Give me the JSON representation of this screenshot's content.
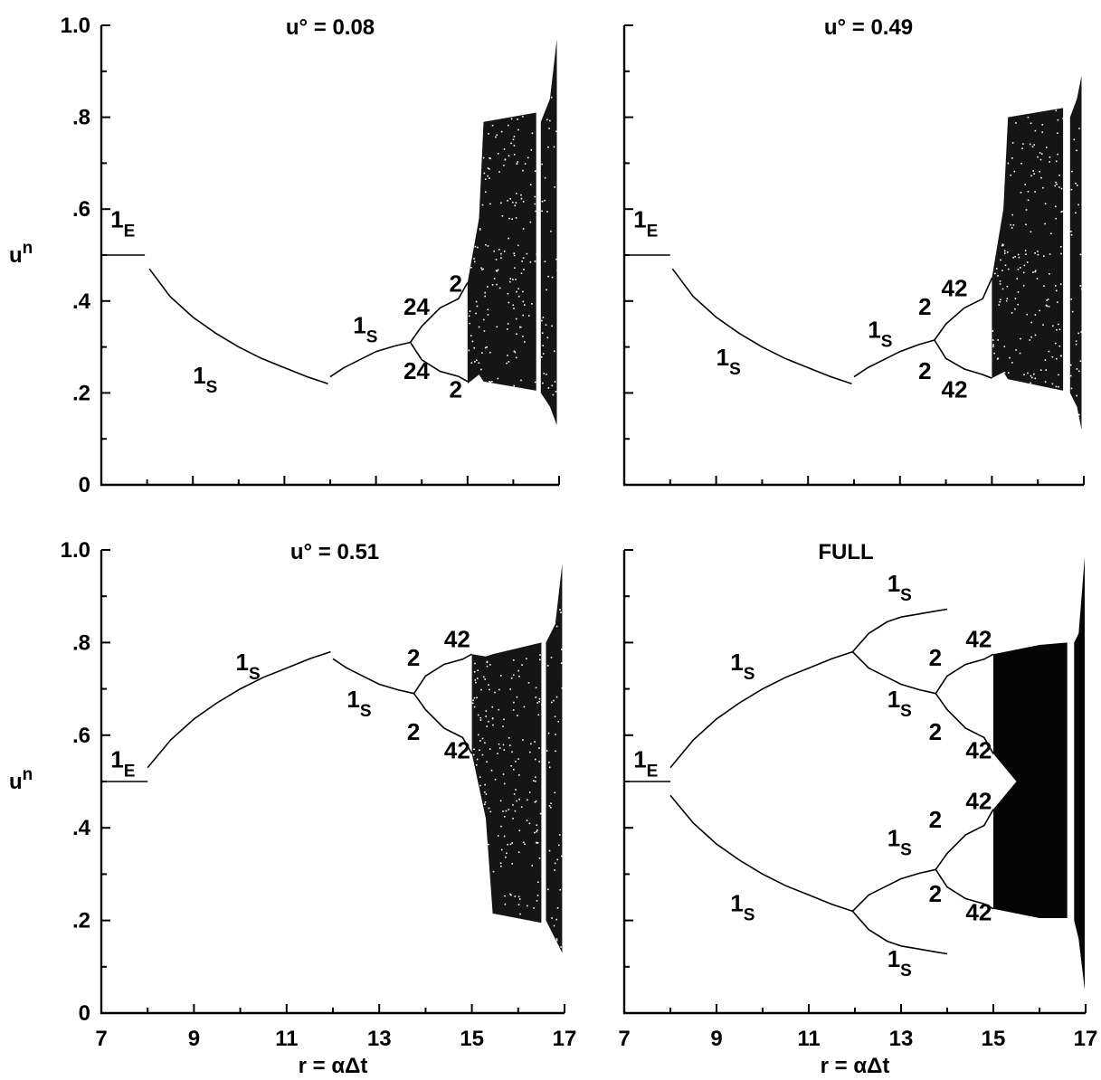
{
  "chart_data": [
    {
      "type": "scatter",
      "title": "u° = 0.08",
      "xlabel": "",
      "ylabel": "un",
      "xlim": [
        7,
        17
      ],
      "ylim": [
        0,
        1.0
      ],
      "xticks": [],
      "yticks": [
        "0",
        ".2",
        ".4",
        ".6",
        ".8",
        "1.0"
      ],
      "grid": false,
      "branches": [
        {
          "x": [
            7,
            7.5,
            7.95
          ],
          "y": [
            0.5,
            0.5,
            0.5
          ]
        },
        {
          "x": [
            8.05,
            8.5,
            9,
            9.5,
            10,
            10.5,
            11,
            11.5,
            11.95
          ],
          "y": [
            0.47,
            0.41,
            0.365,
            0.33,
            0.3,
            0.275,
            0.255,
            0.235,
            0.22
          ]
        },
        {
          "x": [
            12.0,
            12.3,
            12.7,
            13.0,
            13.4,
            13.75
          ],
          "y": [
            0.235,
            0.255,
            0.275,
            0.29,
            0.302,
            0.31
          ]
        },
        {
          "x": [
            13.75,
            14.0,
            14.4,
            14.8,
            15.0
          ],
          "y": [
            0.31,
            0.345,
            0.385,
            0.405,
            0.44
          ]
        },
        {
          "x": [
            13.75,
            14.0,
            14.4,
            14.8,
            15.0
          ],
          "y": [
            0.31,
            0.272,
            0.247,
            0.236,
            0.225
          ]
        }
      ],
      "chaos_bands": [
        {
          "x": [
            15.0,
            15.25,
            15.35,
            16.5
          ],
          "top": [
            0.44,
            0.58,
            0.79,
            0.81
          ],
          "bottom": [
            0.22,
            0.24,
            0.225,
            0.205
          ]
        },
        {
          "x": [
            16.6,
            16.8,
            16.95
          ],
          "top": [
            0.79,
            0.84,
            0.97
          ],
          "bottom": [
            0.2,
            0.17,
            0.13
          ]
        }
      ],
      "annotations": [
        {
          "text": "1",
          "sub": "E",
          "x": 7.2,
          "y": 0.56
        },
        {
          "text": "1",
          "sub": "S",
          "x": 9.0,
          "y": 0.22
        },
        {
          "text": "1",
          "sub": "S",
          "x": 12.5,
          "y": 0.33
        },
        {
          "text": "24",
          "sub": "",
          "x": 13.6,
          "y": 0.37
        },
        {
          "text": "2",
          "sub": "",
          "x": 14.6,
          "y": 0.42
        },
        {
          "text": "24",
          "sub": "",
          "x": 13.6,
          "y": 0.23
        },
        {
          "text": "2",
          "sub": "",
          "x": 14.6,
          "y": 0.19
        }
      ]
    },
    {
      "type": "scatter",
      "title": "u° = 0.49",
      "xlabel": "",
      "ylabel": "",
      "xlim": [
        7,
        17
      ],
      "ylim": [
        0,
        1.0
      ],
      "xticks": [],
      "yticks": [],
      "grid": false,
      "branches": [
        {
          "x": [
            7,
            7.5,
            8.0
          ],
          "y": [
            0.5,
            0.5,
            0.5
          ]
        },
        {
          "x": [
            8.05,
            8.5,
            9,
            9.5,
            10,
            10.5,
            11,
            11.5,
            11.95
          ],
          "y": [
            0.47,
            0.41,
            0.365,
            0.33,
            0.3,
            0.275,
            0.255,
            0.235,
            0.22
          ]
        },
        {
          "x": [
            12.0,
            12.3,
            12.7,
            13.0,
            13.4,
            13.75
          ],
          "y": [
            0.235,
            0.255,
            0.275,
            0.29,
            0.305,
            0.315
          ]
        },
        {
          "x": [
            13.75,
            14.0,
            14.4,
            14.8,
            15.0
          ],
          "y": [
            0.315,
            0.35,
            0.385,
            0.405,
            0.45
          ]
        },
        {
          "x": [
            13.75,
            14.0,
            14.4,
            14.8,
            15.0
          ],
          "y": [
            0.315,
            0.275,
            0.252,
            0.24,
            0.232
          ]
        }
      ],
      "chaos_bands": [
        {
          "x": [
            15.0,
            15.25,
            15.35,
            16.55
          ],
          "top": [
            0.45,
            0.6,
            0.8,
            0.82
          ],
          "bottom": [
            0.232,
            0.245,
            0.23,
            0.205
          ]
        },
        {
          "x": [
            16.7,
            16.85,
            16.95
          ],
          "top": [
            0.8,
            0.84,
            0.89
          ],
          "bottom": [
            0.2,
            0.17,
            0.12
          ]
        }
      ],
      "annotations": [
        {
          "text": "1",
          "sub": "E",
          "x": 7.2,
          "y": 0.56
        },
        {
          "text": "1",
          "sub": "S",
          "x": 9.0,
          "y": 0.26
        },
        {
          "text": "1",
          "sub": "S",
          "x": 12.3,
          "y": 0.32
        },
        {
          "text": "2",
          "sub": "",
          "x": 13.4,
          "y": 0.37
        },
        {
          "text": "42",
          "sub": "",
          "x": 13.9,
          "y": 0.41
        },
        {
          "text": "2",
          "sub": "",
          "x": 13.4,
          "y": 0.23
        },
        {
          "text": "42",
          "sub": "",
          "x": 13.9,
          "y": 0.19
        }
      ]
    },
    {
      "type": "scatter",
      "title": "u° = 0.51",
      "xlabel": "r = αΔt",
      "ylabel": "un",
      "xlim": [
        7,
        17
      ],
      "ylim": [
        0,
        1.0
      ],
      "xticks": [
        "7",
        "9",
        "11",
        "13",
        "15",
        "17"
      ],
      "yticks": [
        "0",
        ".2",
        ".4",
        ".6",
        ".8",
        "1.0"
      ],
      "grid": false,
      "branches": [
        {
          "x": [
            7,
            7.5,
            8.0
          ],
          "y": [
            0.5,
            0.5,
            0.5
          ]
        },
        {
          "x": [
            8.0,
            8.5,
            9,
            9.5,
            10,
            10.5,
            11,
            11.5,
            11.95
          ],
          "y": [
            0.53,
            0.59,
            0.635,
            0.67,
            0.7,
            0.725,
            0.745,
            0.765,
            0.78
          ]
        },
        {
          "x": [
            12.0,
            12.3,
            12.7,
            13.0,
            13.4,
            13.75
          ],
          "y": [
            0.765,
            0.745,
            0.725,
            0.71,
            0.698,
            0.69
          ]
        },
        {
          "x": [
            13.75,
            14.0,
            14.4,
            14.8,
            15.0
          ],
          "y": [
            0.69,
            0.728,
            0.753,
            0.764,
            0.775
          ]
        },
        {
          "x": [
            13.75,
            14.0,
            14.4,
            14.8,
            15.0
          ],
          "y": [
            0.69,
            0.655,
            0.615,
            0.595,
            0.56
          ]
        }
      ],
      "chaos_bands": [
        {
          "x": [
            15.0,
            15.3,
            15.45,
            16.5
          ],
          "top": [
            0.775,
            0.77,
            0.775,
            0.8
          ],
          "bottom": [
            0.56,
            0.42,
            0.215,
            0.195
          ]
        },
        {
          "x": [
            16.6,
            16.8,
            16.95
          ],
          "top": [
            0.8,
            0.84,
            0.97
          ],
          "bottom": [
            0.2,
            0.16,
            0.13
          ]
        }
      ],
      "annotations": [
        {
          "text": "1",
          "sub": "E",
          "x": 7.2,
          "y": 0.53
        },
        {
          "text": "1",
          "sub": "S",
          "x": 9.9,
          "y": 0.74
        },
        {
          "text": "1",
          "sub": "S",
          "x": 12.3,
          "y": 0.66
        },
        {
          "text": "2",
          "sub": "",
          "x": 13.6,
          "y": 0.75
        },
        {
          "text": "42",
          "sub": "",
          "x": 14.4,
          "y": 0.79
        },
        {
          "text": "2",
          "sub": "",
          "x": 13.6,
          "y": 0.59
        },
        {
          "text": "42",
          "sub": "",
          "x": 14.4,
          "y": 0.55
        }
      ]
    },
    {
      "type": "scatter",
      "title": "FULL",
      "xlabel": "r = αΔt",
      "ylabel": "",
      "xlim": [
        7,
        17
      ],
      "ylim": [
        0,
        1.0
      ],
      "xticks": [
        "7",
        "9",
        "11",
        "13",
        "15",
        "17"
      ],
      "yticks": [],
      "grid": false,
      "branches": [
        {
          "x": [
            7,
            7.5,
            8.0
          ],
          "y": [
            0.5,
            0.5,
            0.5
          ]
        },
        {
          "x": [
            8.0,
            8.5,
            9,
            9.5,
            10,
            10.5,
            11,
            11.5,
            11.95
          ],
          "y": [
            0.53,
            0.59,
            0.635,
            0.67,
            0.7,
            0.725,
            0.745,
            0.765,
            0.78
          ]
        },
        {
          "x": [
            8.0,
            8.5,
            9,
            9.5,
            10,
            10.5,
            11,
            11.5,
            11.95
          ],
          "y": [
            0.47,
            0.41,
            0.365,
            0.33,
            0.3,
            0.275,
            0.255,
            0.235,
            0.22
          ]
        },
        {
          "x": [
            11.95,
            12.3,
            12.7,
            13.0,
            13.4,
            13.75,
            14.0
          ],
          "y": [
            0.78,
            0.82,
            0.845,
            0.855,
            0.862,
            0.868,
            0.872
          ]
        },
        {
          "x": [
            11.95,
            12.3,
            12.7,
            13.0,
            13.4,
            13.75
          ],
          "y": [
            0.78,
            0.745,
            0.725,
            0.71,
            0.698,
            0.69
          ]
        },
        {
          "x": [
            11.95,
            12.3,
            12.7,
            13.0,
            13.4,
            13.75
          ],
          "y": [
            0.22,
            0.255,
            0.275,
            0.29,
            0.302,
            0.31
          ]
        },
        {
          "x": [
            11.95,
            12.3,
            12.7,
            13.0,
            13.4,
            13.75,
            14.0
          ],
          "y": [
            0.22,
            0.18,
            0.155,
            0.145,
            0.138,
            0.132,
            0.128
          ]
        },
        {
          "x": [
            13.75,
            14.0,
            14.4,
            14.8,
            15.0
          ],
          "y": [
            0.69,
            0.728,
            0.753,
            0.764,
            0.775
          ]
        },
        {
          "x": [
            13.75,
            14.0,
            14.4,
            14.8,
            15.0
          ],
          "y": [
            0.69,
            0.655,
            0.615,
            0.595,
            0.56
          ]
        },
        {
          "x": [
            13.75,
            14.0,
            14.4,
            14.8,
            15.0
          ],
          "y": [
            0.31,
            0.345,
            0.385,
            0.405,
            0.44
          ]
        },
        {
          "x": [
            13.75,
            14.0,
            14.4,
            14.8,
            15.0
          ],
          "y": [
            0.31,
            0.272,
            0.247,
            0.236,
            0.225
          ]
        }
      ],
      "chaos_bands": [
        {
          "x": [
            15.0,
            15.5,
            16.0,
            16.6
          ],
          "top": [
            0.775,
            0.785,
            0.795,
            0.8
          ],
          "bottom": [
            0.56,
            0.5,
            0.44,
            0.205
          ]
        },
        {
          "x": [
            15.0,
            15.5,
            16.0,
            16.6
          ],
          "top": [
            0.44,
            0.5,
            0.56,
            0.8
          ],
          "bottom": [
            0.225,
            0.215,
            0.205,
            0.205
          ]
        },
        {
          "x": [
            16.75,
            16.85,
            16.98
          ],
          "top": [
            0.8,
            0.82,
            0.985
          ],
          "bottom": [
            0.2,
            0.16,
            0.05
          ]
        }
      ],
      "annotations": [
        {
          "text": "1",
          "sub": "E",
          "x": 7.2,
          "y": 0.53
        },
        {
          "text": "1",
          "sub": "S",
          "x": 9.3,
          "y": 0.74
        },
        {
          "text": "1",
          "sub": "S",
          "x": 9.3,
          "y": 0.22
        },
        {
          "text": "1",
          "sub": "S",
          "x": 12.7,
          "y": 0.91
        },
        {
          "text": "1",
          "sub": "S",
          "x": 12.7,
          "y": 0.66
        },
        {
          "text": "1",
          "sub": "S",
          "x": 12.7,
          "y": 0.36
        },
        {
          "text": "1",
          "sub": "S",
          "x": 12.7,
          "y": 0.1
        },
        {
          "text": "2",
          "sub": "",
          "x": 13.6,
          "y": 0.75
        },
        {
          "text": "42",
          "sub": "",
          "x": 14.4,
          "y": 0.79
        },
        {
          "text": "2",
          "sub": "",
          "x": 13.6,
          "y": 0.59
        },
        {
          "text": "42",
          "sub": "",
          "x": 14.4,
          "y": 0.55
        },
        {
          "text": "2",
          "sub": "",
          "x": 13.6,
          "y": 0.4
        },
        {
          "text": "42",
          "sub": "",
          "x": 14.4,
          "y": 0.44
        },
        {
          "text": "2",
          "sub": "",
          "x": 13.6,
          "y": 0.24
        },
        {
          "text": "42",
          "sub": "",
          "x": 14.4,
          "y": 0.2
        }
      ]
    }
  ]
}
